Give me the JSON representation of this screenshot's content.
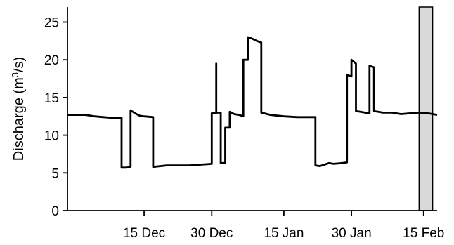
{
  "chart_data": {
    "type": "line",
    "title": "",
    "xlabel": "",
    "ylabel_main": "Discharge (m",
    "ylabel_sup": "3",
    "ylabel_end": "/s)",
    "ylabel": "Discharge (m³/s)",
    "ylim": [
      0,
      27
    ],
    "xlim": [
      "2013-11-28",
      "2014-02-18"
    ],
    "yticks": [
      0,
      5,
      10,
      15,
      20,
      25
    ],
    "xticks": [
      {
        "date": "2013-12-15",
        "label": "15 Dec"
      },
      {
        "date": "2013-12-30",
        "label": "30 Dec"
      },
      {
        "date": "2014-01-15",
        "label": "15 Jan"
      },
      {
        "date": "2014-01-30",
        "label": "30 Jan"
      },
      {
        "date": "2014-02-15",
        "label": "15 Feb"
      }
    ],
    "shaded_interval": [
      "2014-02-14",
      "2014-02-17"
    ],
    "colors": {
      "line": "#000000",
      "shade": "#d9d9d9"
    },
    "series": [
      {
        "points": [
          [
            "2013-11-28",
            12.7
          ],
          [
            "2013-12-02",
            12.7
          ],
          [
            "2013-12-04",
            12.5
          ],
          [
            "2013-12-06",
            12.4
          ],
          [
            "2013-12-08",
            12.3
          ],
          [
            "2013-12-10",
            12.3
          ],
          [
            "2013-12-10",
            5.7
          ],
          [
            "2013-12-11",
            5.7
          ],
          [
            "2013-12-12",
            5.8
          ],
          [
            "2013-12-12",
            13.0
          ],
          [
            "2013-12-12",
            13.3
          ],
          [
            "2013-12-13",
            12.9
          ],
          [
            "2013-12-14",
            12.6
          ],
          [
            "2013-12-15",
            12.5
          ],
          [
            "2013-12-17",
            12.4
          ],
          [
            "2013-12-17",
            5.8
          ],
          [
            "2013-12-20",
            6.0
          ],
          [
            "2013-12-25",
            6.0
          ],
          [
            "2013-12-30",
            6.2
          ],
          [
            "2013-12-30",
            12.9
          ],
          [
            "2013-12-31",
            12.9
          ],
          [
            "2013-12-31",
            19.5
          ],
          [
            "2013-12-31",
            13.0
          ],
          [
            "2014-01-01",
            13.0
          ],
          [
            "2014-01-01",
            6.3
          ],
          [
            "2014-01-02",
            6.3
          ],
          [
            "2014-01-02",
            11.0
          ],
          [
            "2014-01-03",
            11.0
          ],
          [
            "2014-01-03",
            13.1
          ],
          [
            "2014-01-04",
            12.8
          ],
          [
            "2014-01-05",
            12.7
          ],
          [
            "2014-01-06",
            12.5
          ],
          [
            "2014-01-06",
            20.0
          ],
          [
            "2014-01-07",
            20.0
          ],
          [
            "2014-01-07",
            23.0
          ],
          [
            "2014-01-08",
            22.8
          ],
          [
            "2014-01-09",
            22.5
          ],
          [
            "2014-01-10",
            22.3
          ],
          [
            "2014-01-10",
            13.0
          ],
          [
            "2014-01-12",
            12.7
          ],
          [
            "2014-01-15",
            12.5
          ],
          [
            "2014-01-18",
            12.4
          ],
          [
            "2014-01-22",
            12.4
          ],
          [
            "2014-01-22",
            6.0
          ],
          [
            "2014-01-23",
            5.9
          ],
          [
            "2014-01-24",
            6.1
          ],
          [
            "2014-01-25",
            6.3
          ],
          [
            "2014-01-26",
            6.2
          ],
          [
            "2014-01-28",
            6.3
          ],
          [
            "2014-01-29",
            6.4
          ],
          [
            "2014-01-29",
            13.0
          ],
          [
            "2014-01-29",
            18.0
          ],
          [
            "2014-01-30",
            17.8
          ],
          [
            "2014-01-30",
            20.0
          ],
          [
            "2014-01-31",
            19.5
          ],
          [
            "2014-01-31",
            13.2
          ],
          [
            "2014-02-01",
            13.1
          ],
          [
            "2014-02-02",
            13.0
          ],
          [
            "2014-02-03",
            12.9
          ],
          [
            "2014-02-03",
            19.2
          ],
          [
            "2014-02-04",
            19.0
          ],
          [
            "2014-02-04",
            13.2
          ],
          [
            "2014-02-06",
            13.0
          ],
          [
            "2014-02-08",
            13.0
          ],
          [
            "2014-02-10",
            12.8
          ],
          [
            "2014-02-12",
            12.9
          ],
          [
            "2014-02-14",
            13.0
          ],
          [
            "2014-02-16",
            12.9
          ],
          [
            "2014-02-18",
            12.7
          ]
        ]
      }
    ]
  }
}
